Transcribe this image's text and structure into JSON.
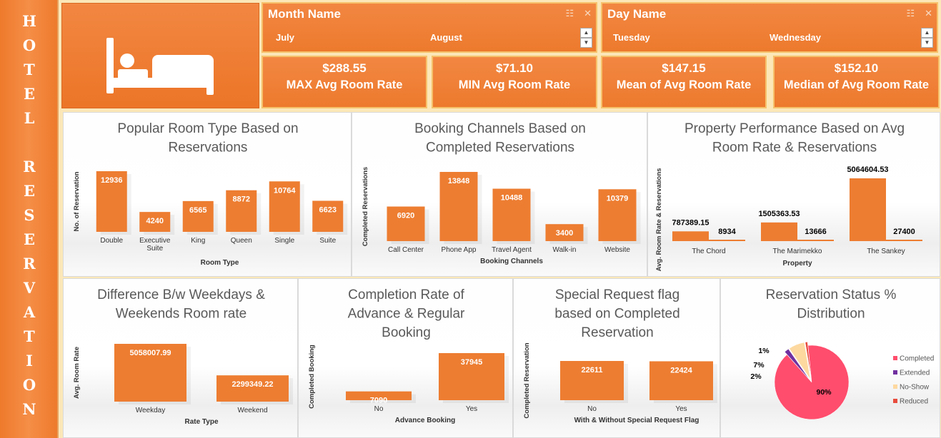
{
  "sidebar": {
    "title": "HOTEL RESERVATION"
  },
  "slicers": {
    "month": {
      "title": "Month Name",
      "items": [
        "July",
        "August"
      ]
    },
    "day": {
      "title": "Day Name",
      "items": [
        "Tuesday",
        "Wednesday"
      ]
    }
  },
  "kpis": [
    {
      "value": "$288.55",
      "label": "MAX Avg Room Rate"
    },
    {
      "value": "$71.10",
      "label": "MIN Avg Room Rate"
    },
    {
      "value": "$147.15",
      "label": "Mean of Avg Room Rate"
    },
    {
      "value": "$152.10",
      "label": "Median of Avg Room Rate"
    }
  ],
  "colors": {
    "bar": "#ed7d31",
    "accent": "#f28742",
    "completed": "#ff4d6d",
    "extended": "#7030a0",
    "no_show": "#fdd9a0",
    "reduced": "#e84c3d"
  },
  "chart_data": [
    {
      "id": "room_type",
      "type": "bar",
      "title": "Popular Room Type Based on Reservations",
      "title_lines": [
        "Popular Room Type Based on",
        "Reservations"
      ],
      "xlabel": "Room Type",
      "ylabel": "No. of Reservation",
      "categories": [
        "Double",
        "Executive Suite",
        "King",
        "Queen",
        "Single",
        "Suite"
      ],
      "values": [
        12936,
        4240,
        6565,
        8872,
        10764,
        6623
      ]
    },
    {
      "id": "booking_channels",
      "type": "bar",
      "title": "Booking Channels Based on Completed Reservations",
      "title_lines": [
        "Booking Channels Based on",
        "Completed Reservations"
      ],
      "xlabel": "Booking Channels",
      "ylabel": "Completed Reservations",
      "categories": [
        "Call Center",
        "Phone App",
        "Travel Agent",
        "Walk-in",
        "Website"
      ],
      "values": [
        6920,
        13848,
        10488,
        3400,
        10379
      ]
    },
    {
      "id": "property_performance",
      "type": "bar",
      "title": "Property Performance Based on Avg Room Rate & Reservations",
      "title_lines": [
        "Property Performance Based on Avg",
        "Room Rate & Reservations"
      ],
      "xlabel": "Property",
      "ylabel": "Avg. Room Rate & Reservations",
      "categories": [
        "The Chord",
        "The Marimekko",
        "The Sankey"
      ],
      "series": [
        {
          "values": [
            787389.15,
            1505363.53,
            5064604.53
          ]
        },
        {
          "values": [
            8934,
            13666,
            27400
          ]
        }
      ]
    },
    {
      "id": "weekday_weekend",
      "type": "bar",
      "title": "Difference B/w Weekdays & Weekends Room rate",
      "title_lines": [
        "Difference B/w Weekdays &",
        "Weekends Room rate"
      ],
      "xlabel": "Rate Type",
      "ylabel": "Avg. Room Rate",
      "categories": [
        "Weekday",
        "Weekend"
      ],
      "values": [
        5058007.99,
        2299349.22
      ]
    },
    {
      "id": "advance_booking",
      "type": "bar",
      "title": "Completion Rate of Advance & Regular Booking",
      "title_lines": [
        "Completion Rate of",
        "Advance & Regular",
        "Booking"
      ],
      "xlabel": "Advance Booking",
      "ylabel": "Completed Booking",
      "categories": [
        "No",
        "Yes"
      ],
      "values": [
        7090,
        37945
      ]
    },
    {
      "id": "special_request",
      "type": "bar",
      "title": "Special Request flag based on Completed Reservation",
      "title_lines": [
        "Special Request flag",
        "based on Completed",
        "Reservation"
      ],
      "xlabel": "With & Without Special Request Flag",
      "ylabel": "Completed Reservation",
      "categories": [
        "No",
        "Yes"
      ],
      "values": [
        22611,
        22424
      ]
    },
    {
      "id": "reservation_status",
      "type": "pie",
      "title": "Reservation Status % Distribution",
      "title_lines": [
        "Reservation Status %",
        "Distribution"
      ],
      "categories": [
        "Completed",
        "Extended",
        "No-Show",
        "Reduced"
      ],
      "values": [
        90,
        2,
        7,
        1
      ],
      "labels": [
        "90%",
        "2%",
        "7%",
        "1%"
      ],
      "legend": "right"
    }
  ]
}
